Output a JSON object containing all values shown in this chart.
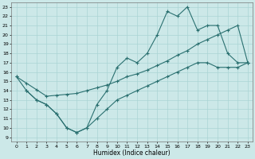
{
  "xlabel": "Humidex (Indice chaleur)",
  "background_color": "#cce8e8",
  "line_color": "#2a7070",
  "grid_color": "#aad4d4",
  "xlim": [
    -0.5,
    23.5
  ],
  "ylim": [
    8.5,
    23.5
  ],
  "xticks": [
    0,
    1,
    2,
    3,
    4,
    5,
    6,
    7,
    8,
    9,
    10,
    11,
    12,
    13,
    14,
    15,
    16,
    17,
    18,
    19,
    20,
    21,
    22,
    23
  ],
  "yticks": [
    9,
    10,
    11,
    12,
    13,
    14,
    15,
    16,
    17,
    18,
    19,
    20,
    21,
    22,
    23
  ],
  "line1_x": [
    0,
    1,
    2,
    3,
    4,
    5,
    6,
    7,
    8,
    9,
    10,
    11,
    12,
    13,
    14,
    15,
    16,
    17,
    18,
    19,
    20,
    21,
    22,
    23
  ],
  "line1_y": [
    15.5,
    14.0,
    13.0,
    12.5,
    11.5,
    10.0,
    9.5,
    10.0,
    12.5,
    14.0,
    16.5,
    17.5,
    17.0,
    18.0,
    20.0,
    22.5,
    22.0,
    23.0,
    20.5,
    21.0,
    21.0,
    18.0,
    17.0,
    17.0
  ],
  "line2_x": [
    0,
    1,
    2,
    3,
    4,
    5,
    6,
    7,
    8,
    9,
    10,
    11,
    12,
    13,
    14,
    15,
    16,
    17,
    18,
    19,
    20,
    21,
    22,
    23
  ],
  "line2_y": [
    15.5,
    14.8,
    14.1,
    13.4,
    13.5,
    13.6,
    13.7,
    14.0,
    14.3,
    14.6,
    15.0,
    15.5,
    15.8,
    16.2,
    16.7,
    17.2,
    17.8,
    18.3,
    19.0,
    19.5,
    20.0,
    20.5,
    21.0,
    17.0
  ],
  "line3_x": [
    1,
    2,
    3,
    4,
    5,
    6,
    7,
    8,
    9,
    10,
    11,
    12,
    13,
    14,
    15,
    16,
    17,
    18,
    19,
    20,
    21,
    22,
    23
  ],
  "line3_y": [
    14.0,
    13.0,
    12.5,
    11.5,
    10.0,
    9.5,
    10.0,
    11.0,
    12.0,
    13.0,
    13.5,
    14.0,
    14.5,
    15.0,
    15.5,
    16.0,
    16.5,
    17.0,
    17.0,
    16.5,
    16.5,
    16.5,
    17.0
  ]
}
